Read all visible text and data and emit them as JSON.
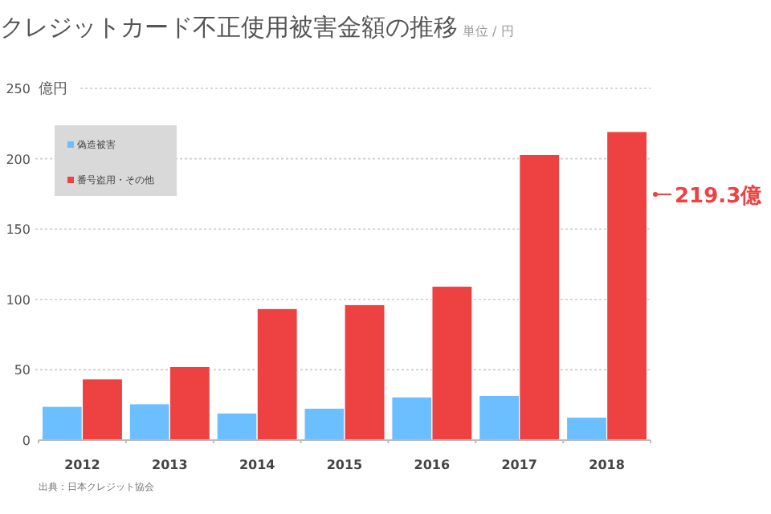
{
  "chart_data": {
    "type": "bar",
    "title": "クレジットカード不正使用被害金額の推移",
    "subtitle": "単位 / 円",
    "ylabel": "億円",
    "categories": [
      "2012",
      "2013",
      "2014",
      "2015",
      "2016",
      "2017",
      "2018"
    ],
    "series": [
      {
        "name": "偽造被害",
        "color": "#6bbfff",
        "values": [
          24,
          25.8,
          19.3,
          22.7,
          30.7,
          31.8,
          16.3
        ]
      },
      {
        "name": "番号盗用・その他",
        "color": "#ee4142",
        "values": [
          43.5,
          52.3,
          93.5,
          96.3,
          109.4,
          203,
          219.3
        ]
      }
    ],
    "ylim": [
      0,
      250
    ],
    "yticks": [
      0,
      50,
      100,
      150,
      200,
      250
    ],
    "grid": "y",
    "legend": "top left",
    "annotations": [
      "219.3億",
      "出典：日本クレジット協会"
    ]
  }
}
